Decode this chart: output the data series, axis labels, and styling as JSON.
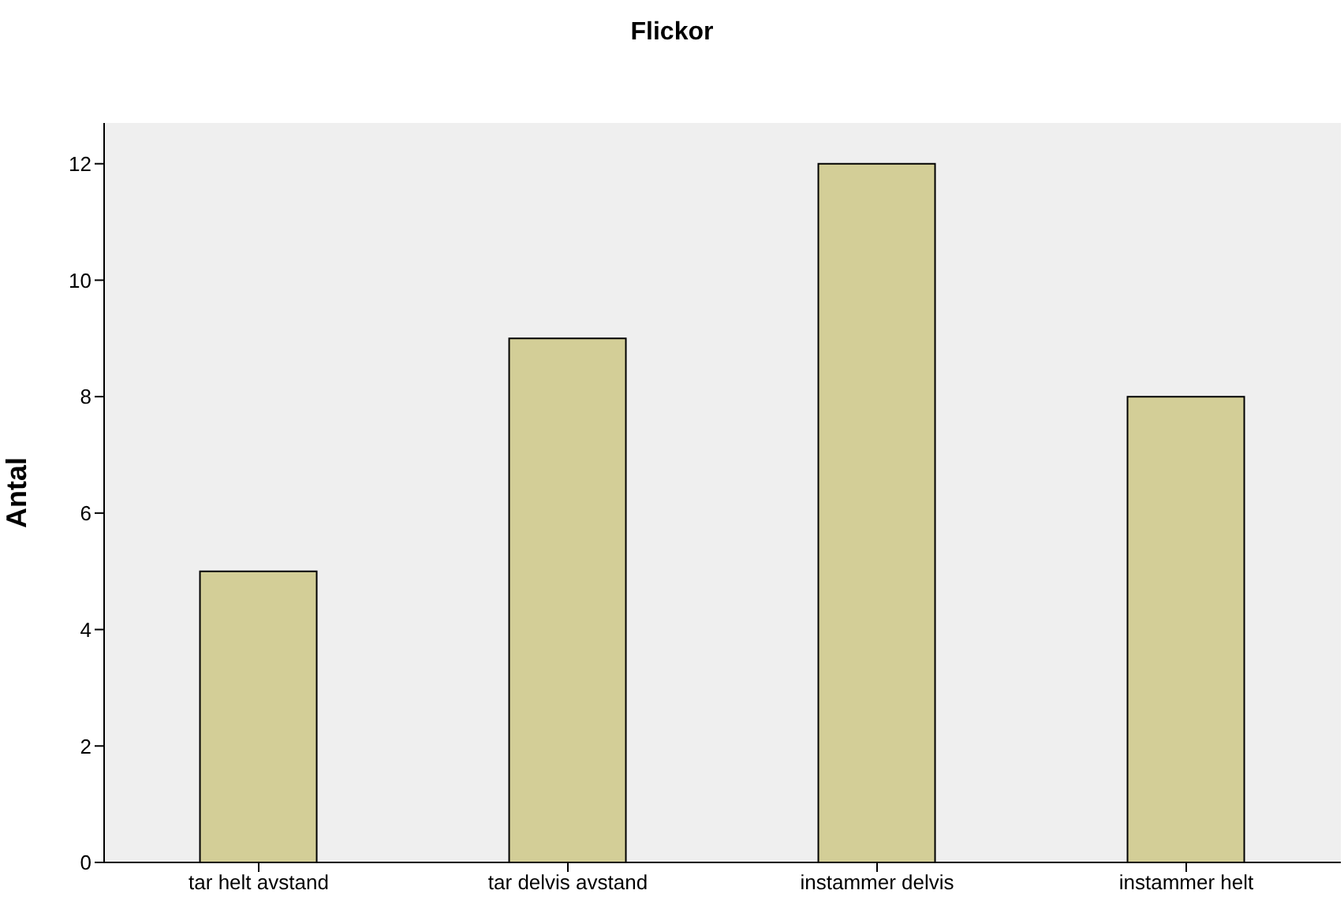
{
  "chart_data": {
    "type": "bar",
    "title": "Flickor",
    "ylabel": "Antal",
    "categories": [
      "tar helt avstand",
      "tar delvis avstand",
      "instammer delvis",
      "instammer helt"
    ],
    "values": [
      5,
      9,
      12,
      8
    ],
    "color": "#d3ce97",
    "ylim": [
      0,
      12.7
    ],
    "yticks": [
      0,
      2,
      4,
      6,
      8,
      10,
      12
    ],
    "legend": false
  }
}
